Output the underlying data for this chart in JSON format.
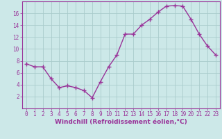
{
  "x": [
    0,
    1,
    2,
    3,
    4,
    5,
    6,
    7,
    8,
    9,
    10,
    11,
    12,
    13,
    14,
    15,
    16,
    17,
    18,
    19,
    20,
    21,
    22,
    23
  ],
  "y": [
    7.5,
    7.0,
    7.0,
    5.0,
    3.5,
    3.8,
    3.5,
    3.0,
    1.8,
    4.5,
    7.0,
    9.0,
    12.5,
    12.5,
    14.0,
    15.0,
    16.2,
    17.2,
    17.3,
    17.2,
    15.0,
    12.5,
    10.5,
    9.0
  ],
  "line_color": "#993399",
  "marker": "+",
  "marker_size": 4,
  "bg_color": "#cce8e8",
  "grid_color": "#aacccc",
  "xlabel": "Windchill (Refroidissement éolien,°C)",
  "ylabel": "",
  "xlim": [
    -0.5,
    23.5
  ],
  "ylim": [
    0,
    18
  ],
  "yticks": [
    2,
    4,
    6,
    8,
    10,
    12,
    14,
    16
  ],
  "xticks": [
    0,
    1,
    2,
    3,
    4,
    5,
    6,
    7,
    8,
    9,
    10,
    11,
    12,
    13,
    14,
    15,
    16,
    17,
    18,
    19,
    20,
    21,
    22,
    23
  ],
  "tick_color": "#993399",
  "tick_fontsize": 5.5,
  "xlabel_fontsize": 6.5,
  "line_width": 1.0,
  "spine_color": "#993399"
}
